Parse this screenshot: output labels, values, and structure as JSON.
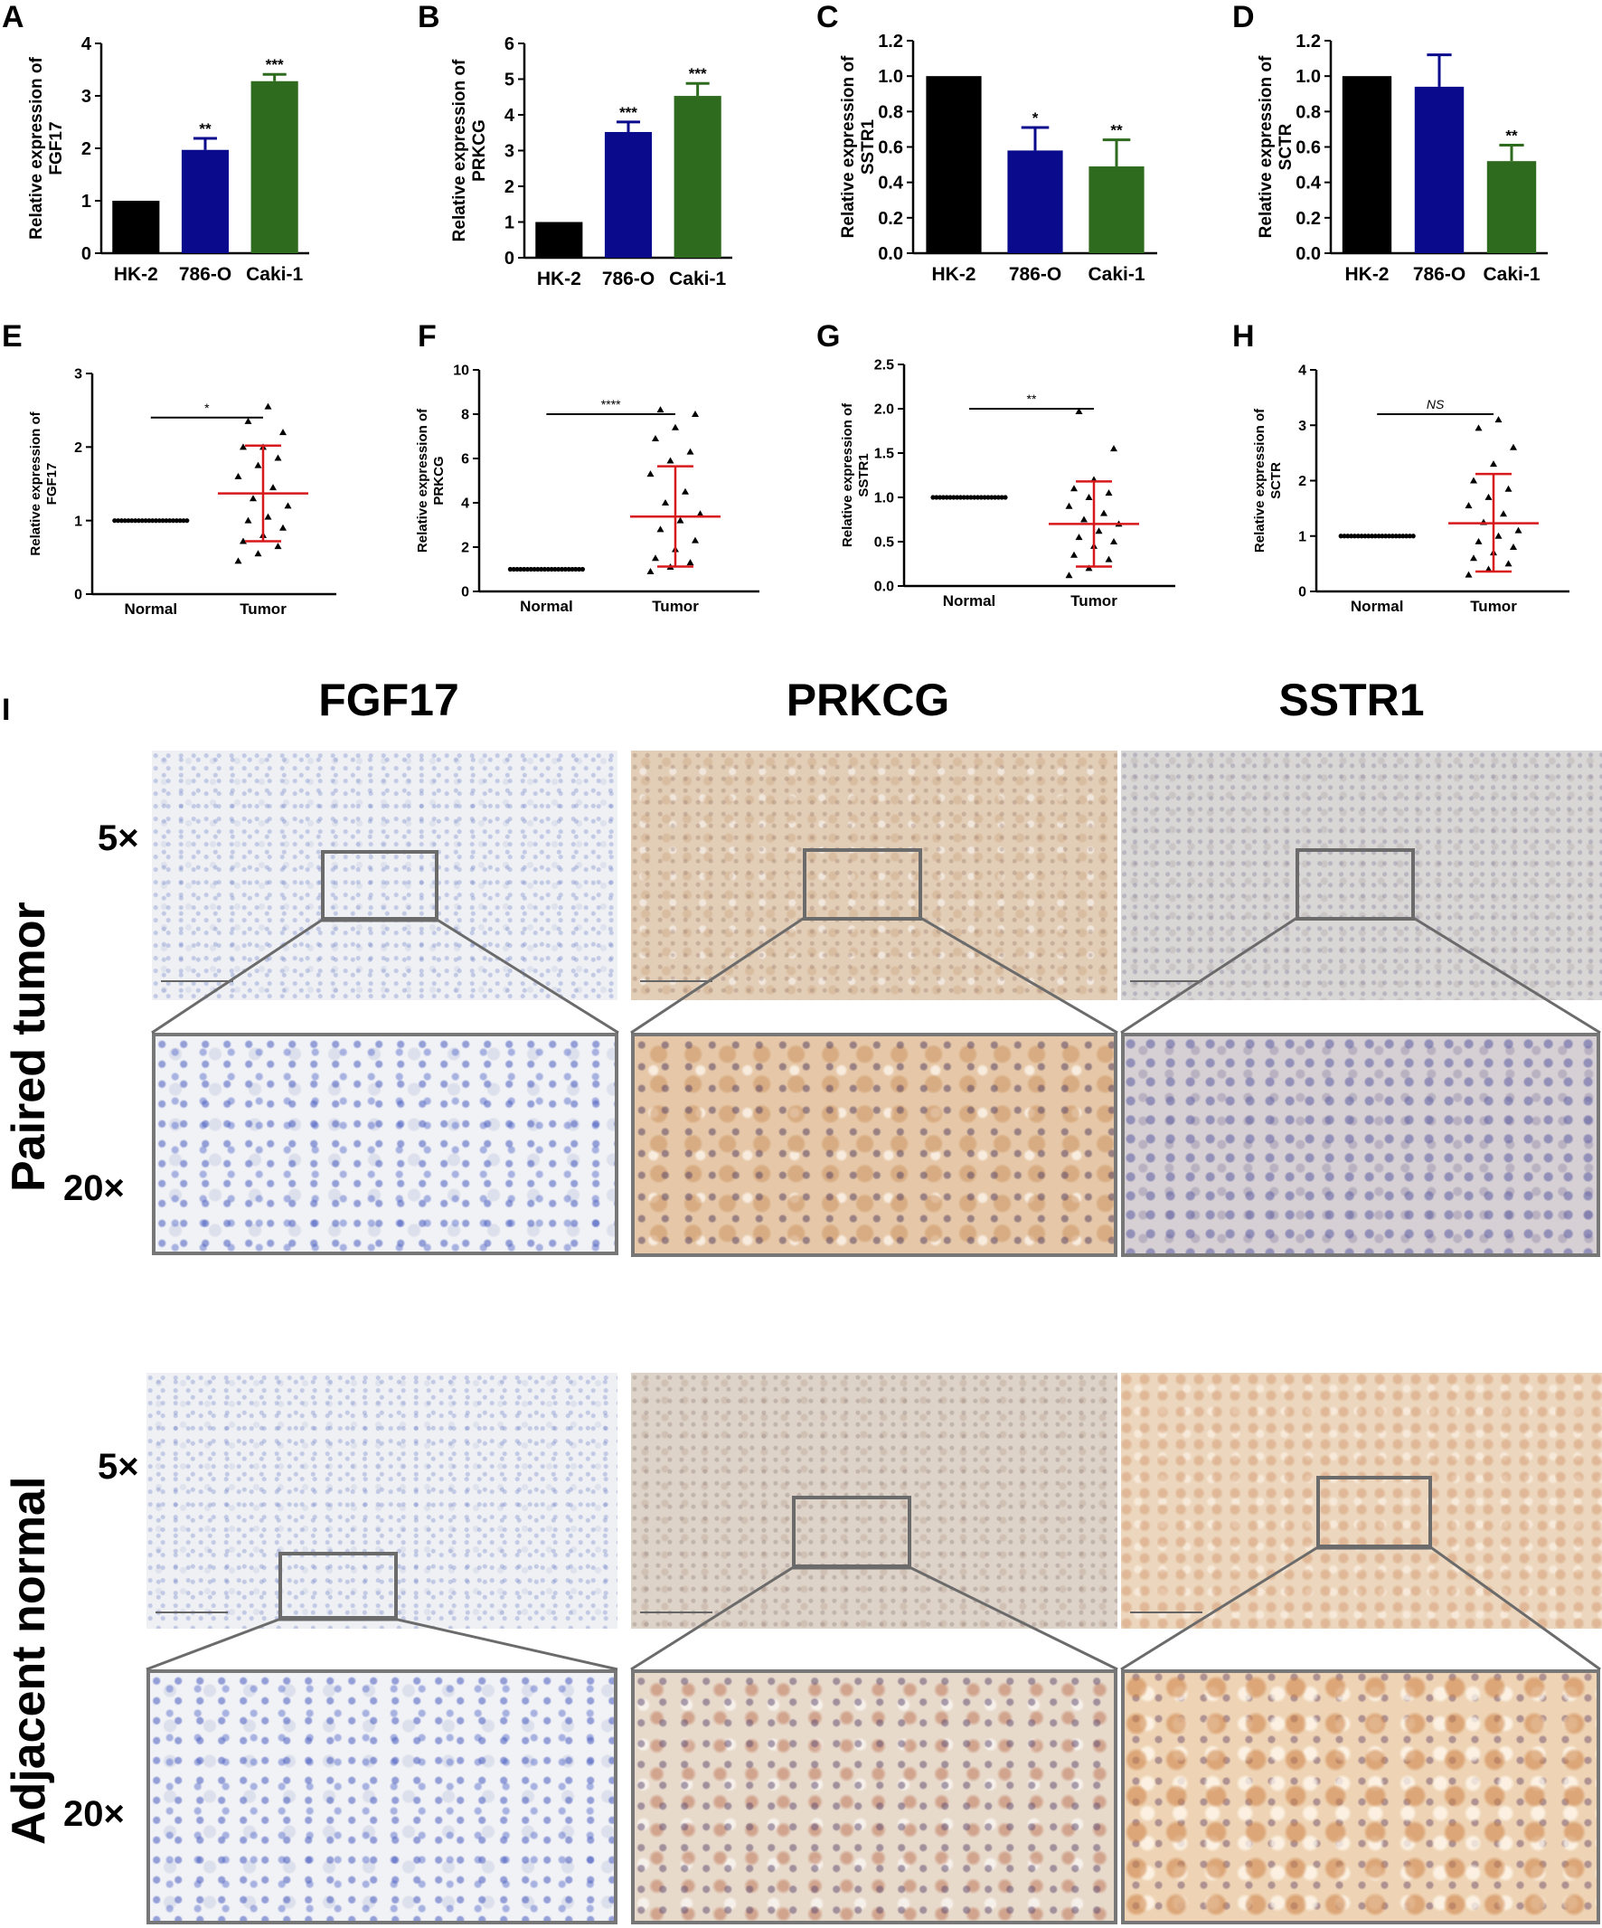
{
  "panel_labels": [
    "A",
    "B",
    "C",
    "D",
    "E",
    "F",
    "G",
    "H",
    "I"
  ],
  "chart_data": [
    {
      "panel": "A",
      "type": "bar",
      "ylabel_line1": "Relative expression of",
      "ylabel_line2": "FGF17",
      "categories": [
        "HK-2",
        "786-O",
        "Caki-1"
      ],
      "values": [
        1.0,
        1.97,
        3.28
      ],
      "errors": [
        0,
        0.22,
        0.13
      ],
      "significance": [
        "",
        "**",
        "***"
      ],
      "colors": [
        "#000000",
        "#0a0a8c",
        "#2e6b1e"
      ],
      "ylim": [
        0,
        4
      ],
      "yticks": [
        "0",
        "1",
        "2",
        "3",
        "4"
      ]
    },
    {
      "panel": "B",
      "type": "bar",
      "ylabel_line1": "Relative expression of",
      "ylabel_line2": "PRKCG",
      "categories": [
        "HK-2",
        "786-O",
        "Caki-1"
      ],
      "values": [
        1.0,
        3.52,
        4.53
      ],
      "errors": [
        0,
        0.28,
        0.35
      ],
      "significance": [
        "",
        "***",
        "***"
      ],
      "colors": [
        "#000000",
        "#0a0a8c",
        "#2e6b1e"
      ],
      "ylim": [
        0,
        6
      ],
      "yticks": [
        "0",
        "1",
        "2",
        "3",
        "4",
        "5",
        "6"
      ]
    },
    {
      "panel": "C",
      "type": "bar",
      "ylabel_line1": "Relative expression of",
      "ylabel_line2": "SSTR1",
      "categories": [
        "HK-2",
        "786-O",
        "Caki-1"
      ],
      "values": [
        1.0,
        0.58,
        0.49
      ],
      "errors": [
        0,
        0.13,
        0.15
      ],
      "significance": [
        "",
        "*",
        "**"
      ],
      "colors": [
        "#000000",
        "#0a0a8c",
        "#2e6b1e"
      ],
      "ylim": [
        0,
        1.2
      ],
      "yticks": [
        "0.0",
        "0.2",
        "0.4",
        "0.6",
        "0.8",
        "1.0",
        "1.2"
      ]
    },
    {
      "panel": "D",
      "type": "bar",
      "ylabel_line1": "Relative expression of",
      "ylabel_line2": "SCTR",
      "categories": [
        "HK-2",
        "786-O",
        "Caki-1"
      ],
      "values": [
        1.0,
        0.94,
        0.52
      ],
      "errors": [
        0,
        0.18,
        0.09
      ],
      "significance": [
        "",
        "",
        "**"
      ],
      "colors": [
        "#000000",
        "#0a0a8c",
        "#2e6b1e"
      ],
      "ylim": [
        0,
        1.2
      ],
      "yticks": [
        "0.0",
        "0.2",
        "0.4",
        "0.6",
        "0.8",
        "1.0",
        "1.2"
      ]
    },
    {
      "panel": "E",
      "type": "scatter",
      "ylabel_line1": "Relative expression of",
      "ylabel_line2": "FGF17",
      "categories": [
        "Normal",
        "Tumor"
      ],
      "ylim": [
        0,
        3
      ],
      "yticks": [
        "0",
        "1",
        "2",
        "3"
      ],
      "normal_value": 1.0,
      "tumor_mean": 1.37,
      "tumor_sd_low": 0.72,
      "tumor_sd_high": 2.02,
      "significance": "*",
      "tumor_points": [
        0.45,
        0.55,
        0.65,
        0.72,
        0.8,
        0.9,
        1.0,
        1.05,
        1.2,
        1.3,
        1.45,
        1.6,
        1.75,
        1.85,
        2.0,
        2.0,
        2.2,
        2.35,
        2.55
      ]
    },
    {
      "panel": "F",
      "type": "scatter",
      "ylabel_line1": "Relative expression of",
      "ylabel_line2": "PRKCG",
      "categories": [
        "Normal",
        "Tumor"
      ],
      "ylim": [
        0,
        10
      ],
      "yticks": [
        "0",
        "2",
        "4",
        "6",
        "8",
        "10"
      ],
      "normal_value": 1.0,
      "tumor_mean": 3.38,
      "tumor_sd_low": 1.12,
      "tumor_sd_high": 5.65,
      "significance": "****",
      "tumor_points": [
        0.9,
        1.1,
        1.3,
        1.5,
        1.9,
        2.3,
        2.8,
        3.2,
        3.5,
        4.0,
        4.5,
        5.3,
        5.9,
        6.3,
        6.9,
        7.4,
        8.0,
        8.2
      ]
    },
    {
      "panel": "G",
      "type": "scatter",
      "ylabel_line1": "Relative expression of",
      "ylabel_line2": "SSTR1",
      "categories": [
        "Normal",
        "Tumor"
      ],
      "ylim": [
        0,
        2.5
      ],
      "yticks": [
        "0.0",
        "0.5",
        "1.0",
        "1.5",
        "2.0",
        "2.5"
      ],
      "normal_value": 1.0,
      "tumor_mean": 0.7,
      "tumor_sd_low": 0.22,
      "tumor_sd_high": 1.18,
      "significance": "**",
      "tumor_points": [
        0.12,
        0.2,
        0.3,
        0.35,
        0.45,
        0.5,
        0.55,
        0.62,
        0.7,
        0.75,
        0.82,
        0.9,
        1.0,
        1.05,
        1.1,
        1.2,
        1.55,
        1.97
      ]
    },
    {
      "panel": "H",
      "type": "scatter",
      "ylabel_line1": "Relative expression of",
      "ylabel_line2": "SCTR",
      "categories": [
        "Normal",
        "Tumor"
      ],
      "ylim": [
        0,
        4
      ],
      "yticks": [
        "0",
        "1",
        "2",
        "3",
        "4"
      ],
      "normal_value": 1.0,
      "tumor_mean": 1.23,
      "tumor_sd_low": 0.36,
      "tumor_sd_high": 2.12,
      "significance": "NS",
      "tumor_points": [
        0.3,
        0.4,
        0.5,
        0.6,
        0.7,
        0.8,
        0.9,
        1.0,
        1.1,
        1.25,
        1.4,
        1.55,
        1.7,
        1.85,
        2.0,
        2.3,
        2.6,
        2.95,
        3.1
      ]
    }
  ],
  "ihc": {
    "columns": [
      "FGF17",
      "PRKCG",
      "SSTR1"
    ],
    "rows": [
      "Paired tumor",
      "Adjacent normal"
    ],
    "magnifications": [
      "5×",
      "20×"
    ]
  }
}
